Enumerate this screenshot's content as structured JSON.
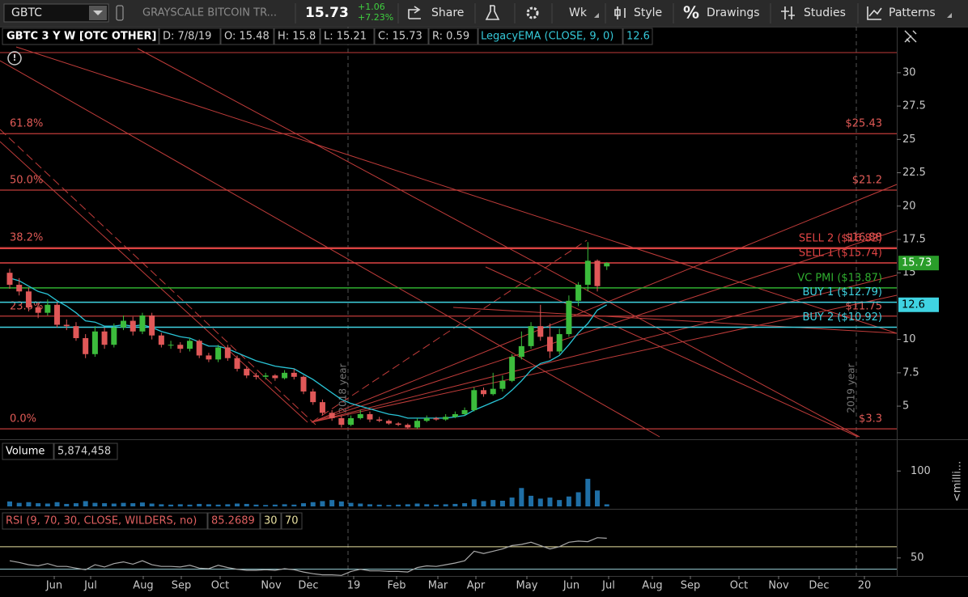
{
  "toolbar": {
    "symbol": "GBTC",
    "description": "GRAYSCALE BITCOIN TR...",
    "last": "15.73",
    "change": "+1.06",
    "change_pct": "+7.23%",
    "share": "Share",
    "aggregation": "Wk",
    "style": "Style",
    "drawings": "Drawings",
    "studies": "Studies",
    "patterns": "Patterns"
  },
  "header": {
    "symbol": "GBTC 3 Y W [OTC OTHER]",
    "date": "D: 7/8/19",
    "open": "O: 15.48",
    "high": "H: 15.8",
    "low": "L: 15.21",
    "close": "C: 15.73",
    "range": "R: 0.59",
    "study": "LegacyEMA (CLOSE, 9, 0)",
    "study_value": "12.6"
  },
  "price_panel": {
    "ylim": [
      2.7,
      33.45
    ],
    "yticks": [
      5,
      7.5,
      10,
      15,
      17.5,
      20,
      22.5,
      25,
      27.5,
      30
    ],
    "candles": [
      [
        15.0,
        15.3,
        13.8,
        14.1
      ],
      [
        14.1,
        14.6,
        13.3,
        13.6
      ],
      [
        13.6,
        13.9,
        12.1,
        12.4
      ],
      [
        12.4,
        12.8,
        11.6,
        12.0
      ],
      [
        12.0,
        13.0,
        11.8,
        12.6
      ],
      [
        12.6,
        12.8,
        10.9,
        11.1
      ],
      [
        11.1,
        11.5,
        10.7,
        11.0
      ],
      [
        11.0,
        11.3,
        9.9,
        10.1
      ],
      [
        10.1,
        10.4,
        8.6,
        8.9
      ],
      [
        8.9,
        11.0,
        8.7,
        10.6
      ],
      [
        10.6,
        10.9,
        9.3,
        9.6
      ],
      [
        9.6,
        11.2,
        9.4,
        10.9
      ],
      [
        10.9,
        11.8,
        10.7,
        11.4
      ],
      [
        11.4,
        11.7,
        10.3,
        10.6
      ],
      [
        10.6,
        12.0,
        10.4,
        11.8
      ],
      [
        11.8,
        12.0,
        10.0,
        10.3
      ],
      [
        10.3,
        10.5,
        9.4,
        9.6
      ],
      [
        9.6,
        9.9,
        9.3,
        9.6
      ],
      [
        9.6,
        9.8,
        9.0,
        9.3
      ],
      [
        9.3,
        10.1,
        9.1,
        9.9
      ],
      [
        9.9,
        10.0,
        8.6,
        8.8
      ],
      [
        8.8,
        9.0,
        8.3,
        8.5
      ],
      [
        8.5,
        9.6,
        8.3,
        9.4
      ],
      [
        9.4,
        9.6,
        8.4,
        8.6
      ],
      [
        8.6,
        8.8,
        7.6,
        7.8
      ],
      [
        7.8,
        8.0,
        7.1,
        7.3
      ],
      [
        7.3,
        7.5,
        7.0,
        7.2
      ],
      [
        7.2,
        7.5,
        7.0,
        7.3
      ],
      [
        7.3,
        7.4,
        6.9,
        7.1
      ],
      [
        7.1,
        7.7,
        7.0,
        7.5
      ],
      [
        7.5,
        7.8,
        7.0,
        7.2
      ],
      [
        7.2,
        7.3,
        5.9,
        6.1
      ],
      [
        6.1,
        6.3,
        5.1,
        5.3
      ],
      [
        5.3,
        5.5,
        4.3,
        4.5
      ],
      [
        4.5,
        4.7,
        3.9,
        4.1
      ],
      [
        4.1,
        4.3,
        3.4,
        3.6
      ],
      [
        3.6,
        4.3,
        3.5,
        4.1
      ],
      [
        4.1,
        4.7,
        4.0,
        4.4
      ],
      [
        4.4,
        4.6,
        3.8,
        4.0
      ],
      [
        4.0,
        4.2,
        3.8,
        3.9
      ],
      [
        3.9,
        4.0,
        3.6,
        3.7
      ],
      [
        3.7,
        3.8,
        3.5,
        3.6
      ],
      [
        3.6,
        3.7,
        3.3,
        3.4
      ],
      [
        3.4,
        4.1,
        3.3,
        3.9
      ],
      [
        3.9,
        4.3,
        3.8,
        4.1
      ],
      [
        4.1,
        4.2,
        3.9,
        4.0
      ],
      [
        4.0,
        4.4,
        3.9,
        4.2
      ],
      [
        4.2,
        4.6,
        4.1,
        4.4
      ],
      [
        4.4,
        4.9,
        4.3,
        4.7
      ],
      [
        4.7,
        6.4,
        4.6,
        6.2
      ],
      [
        6.2,
        6.4,
        5.7,
        5.9
      ],
      [
        5.9,
        7.5,
        5.8,
        6.3
      ],
      [
        6.3,
        7.3,
        6.1,
        6.9
      ],
      [
        6.9,
        8.9,
        6.8,
        8.7
      ],
      [
        8.7,
        10.6,
        8.5,
        9.5
      ],
      [
        9.5,
        11.3,
        9.3,
        11.0
      ],
      [
        11.0,
        12.6,
        9.9,
        10.2
      ],
      [
        10.2,
        11.2,
        8.6,
        9.1
      ],
      [
        9.1,
        10.8,
        8.9,
        10.4
      ],
      [
        10.4,
        13.3,
        10.2,
        12.9
      ],
      [
        12.9,
        14.3,
        12.5,
        14.1
      ],
      [
        14.1,
        17.3,
        13.6,
        15.9
      ],
      [
        15.9,
        16.0,
        13.6,
        14.0
      ],
      [
        15.48,
        15.8,
        15.21,
        15.73
      ]
    ],
    "ema": [
      14.6,
      14.4,
      14.0,
      13.6,
      13.4,
      12.9,
      12.5,
      12.0,
      11.4,
      11.3,
      11.0,
      11.0,
      11.1,
      11.0,
      11.1,
      10.9,
      10.6,
      10.4,
      10.2,
      10.1,
      9.8,
      9.5,
      9.5,
      9.3,
      9.0,
      8.7,
      8.4,
      8.2,
      8.0,
      7.9,
      7.8,
      7.4,
      7.0,
      6.5,
      6.0,
      5.5,
      5.2,
      5.0,
      4.8,
      4.6,
      4.4,
      4.3,
      4.1,
      4.1,
      4.1,
      4.1,
      4.1,
      4.2,
      4.3,
      4.7,
      5.0,
      5.3,
      5.6,
      6.2,
      6.9,
      7.7,
      8.2,
      8.4,
      8.8,
      9.6,
      10.5,
      11.2,
      12.2,
      12.6
    ],
    "fib_levels": [
      {
        "pct": "61.8%",
        "price": 25.43,
        "label": "$25.43"
      },
      {
        "pct": "50.0%",
        "price": 21.2,
        "label": "$21.2"
      },
      {
        "pct": "38.2%",
        "price": 16.88,
        "label": "$16.88"
      },
      {
        "pct": "23.6%",
        "price": 11.75,
        "label": "$11.75"
      },
      {
        "pct": "0.0%",
        "price": 3.3,
        "label": "$3.3"
      }
    ],
    "levels": [
      {
        "name": "SELL 2 ($16.82)",
        "price": 16.82,
        "color": "#e04444"
      },
      {
        "name": "SELL 1 ($15.74)",
        "price": 15.74,
        "color": "#e04444"
      },
      {
        "name": "VC PMI ($13.87)",
        "price": 13.87,
        "color": "#2fae2f"
      },
      {
        "name": "BUY 1 ($12.79)",
        "price": 12.79,
        "color": "#3fd3e2"
      },
      {
        "name": "BUY 2 ($10.92)",
        "price": 10.92,
        "color": "#3fd3e2"
      }
    ],
    "last_price": 15.73,
    "ema_last": 12.6,
    "year_labels": [
      "2018 year",
      "2019 year"
    ]
  },
  "volume_panel": {
    "label": "Volume",
    "value": "5,874,458",
    "unit": "<milli...",
    "ylim": [
      0,
      183
    ],
    "yticks": [
      100
    ],
    "values": [
      14,
      10,
      12,
      9,
      8,
      12,
      7,
      9,
      15,
      10,
      9,
      8,
      10,
      9,
      11,
      8,
      6,
      5,
      6,
      5,
      7,
      6,
      5,
      6,
      8,
      7,
      5,
      4,
      5,
      6,
      5,
      9,
      12,
      15,
      18,
      14,
      10,
      8,
      6,
      5,
      4,
      5,
      6,
      8,
      6,
      5,
      6,
      7,
      9,
      20,
      15,
      18,
      16,
      25,
      52,
      30,
      22,
      25,
      18,
      28,
      40,
      78,
      45,
      5.874458
    ]
  },
  "rsi_panel": {
    "label": "RSI (9, 70, 30, CLOSE, WILDERS, no)",
    "value": "85.2689",
    "lower": 30,
    "upper": 70,
    "ylim": [
      18,
      133
    ],
    "yticks": [
      50
    ],
    "values": [
      45,
      42,
      38,
      36,
      40,
      35,
      35,
      32,
      29,
      38,
      34,
      40,
      43,
      39,
      45,
      38,
      35,
      35,
      34,
      37,
      32,
      31,
      37,
      33,
      30,
      28,
      28,
      29,
      28,
      31,
      29,
      25,
      22,
      20,
      20,
      19,
      26,
      30,
      27,
      27,
      26,
      26,
      25,
      33,
      36,
      35,
      38,
      41,
      45,
      62,
      58,
      62,
      66,
      72,
      74,
      78,
      72,
      66,
      70,
      78,
      80,
      79,
      86,
      85
    ]
  },
  "x_axis": {
    "months": [
      "Jun",
      "Jul",
      "Aug",
      "Sep",
      "Oct",
      "Nov",
      "Dec",
      "19",
      "Feb",
      "Mar",
      "Apr",
      "May",
      "Jun",
      "Jul",
      "Aug",
      "Sep",
      "Oct",
      "Nov",
      "Dec",
      "20"
    ]
  }
}
